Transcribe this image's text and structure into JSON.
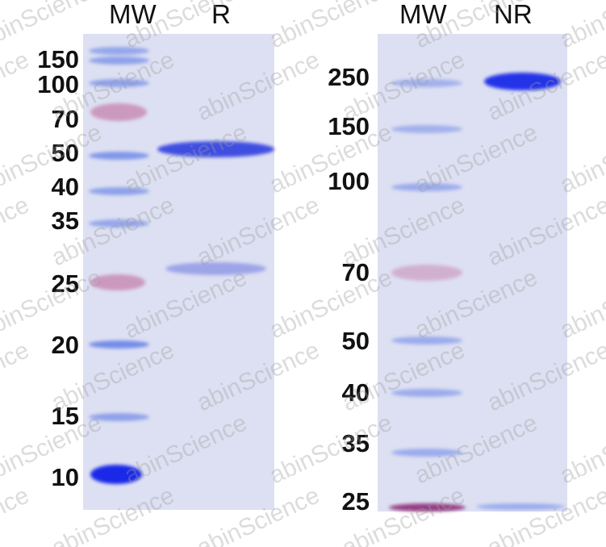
{
  "left_gel": {
    "lanes": [
      "MW",
      "R"
    ],
    "markers": [
      "150",
      "100",
      "70",
      "50",
      "40",
      "35",
      "25",
      "20",
      "15",
      "10"
    ]
  },
  "right_gel": {
    "lanes": [
      "MW",
      "NR"
    ],
    "markers": [
      "250",
      "150",
      "100",
      "70",
      "50",
      "40",
      "35",
      "25"
    ]
  },
  "watermark": "abinScience",
  "colors": {
    "gel": "#dde0f2",
    "band": "#2f3fe0",
    "marker_pink": "#c06a9c",
    "marker_blue": "#5a78e6"
  }
}
